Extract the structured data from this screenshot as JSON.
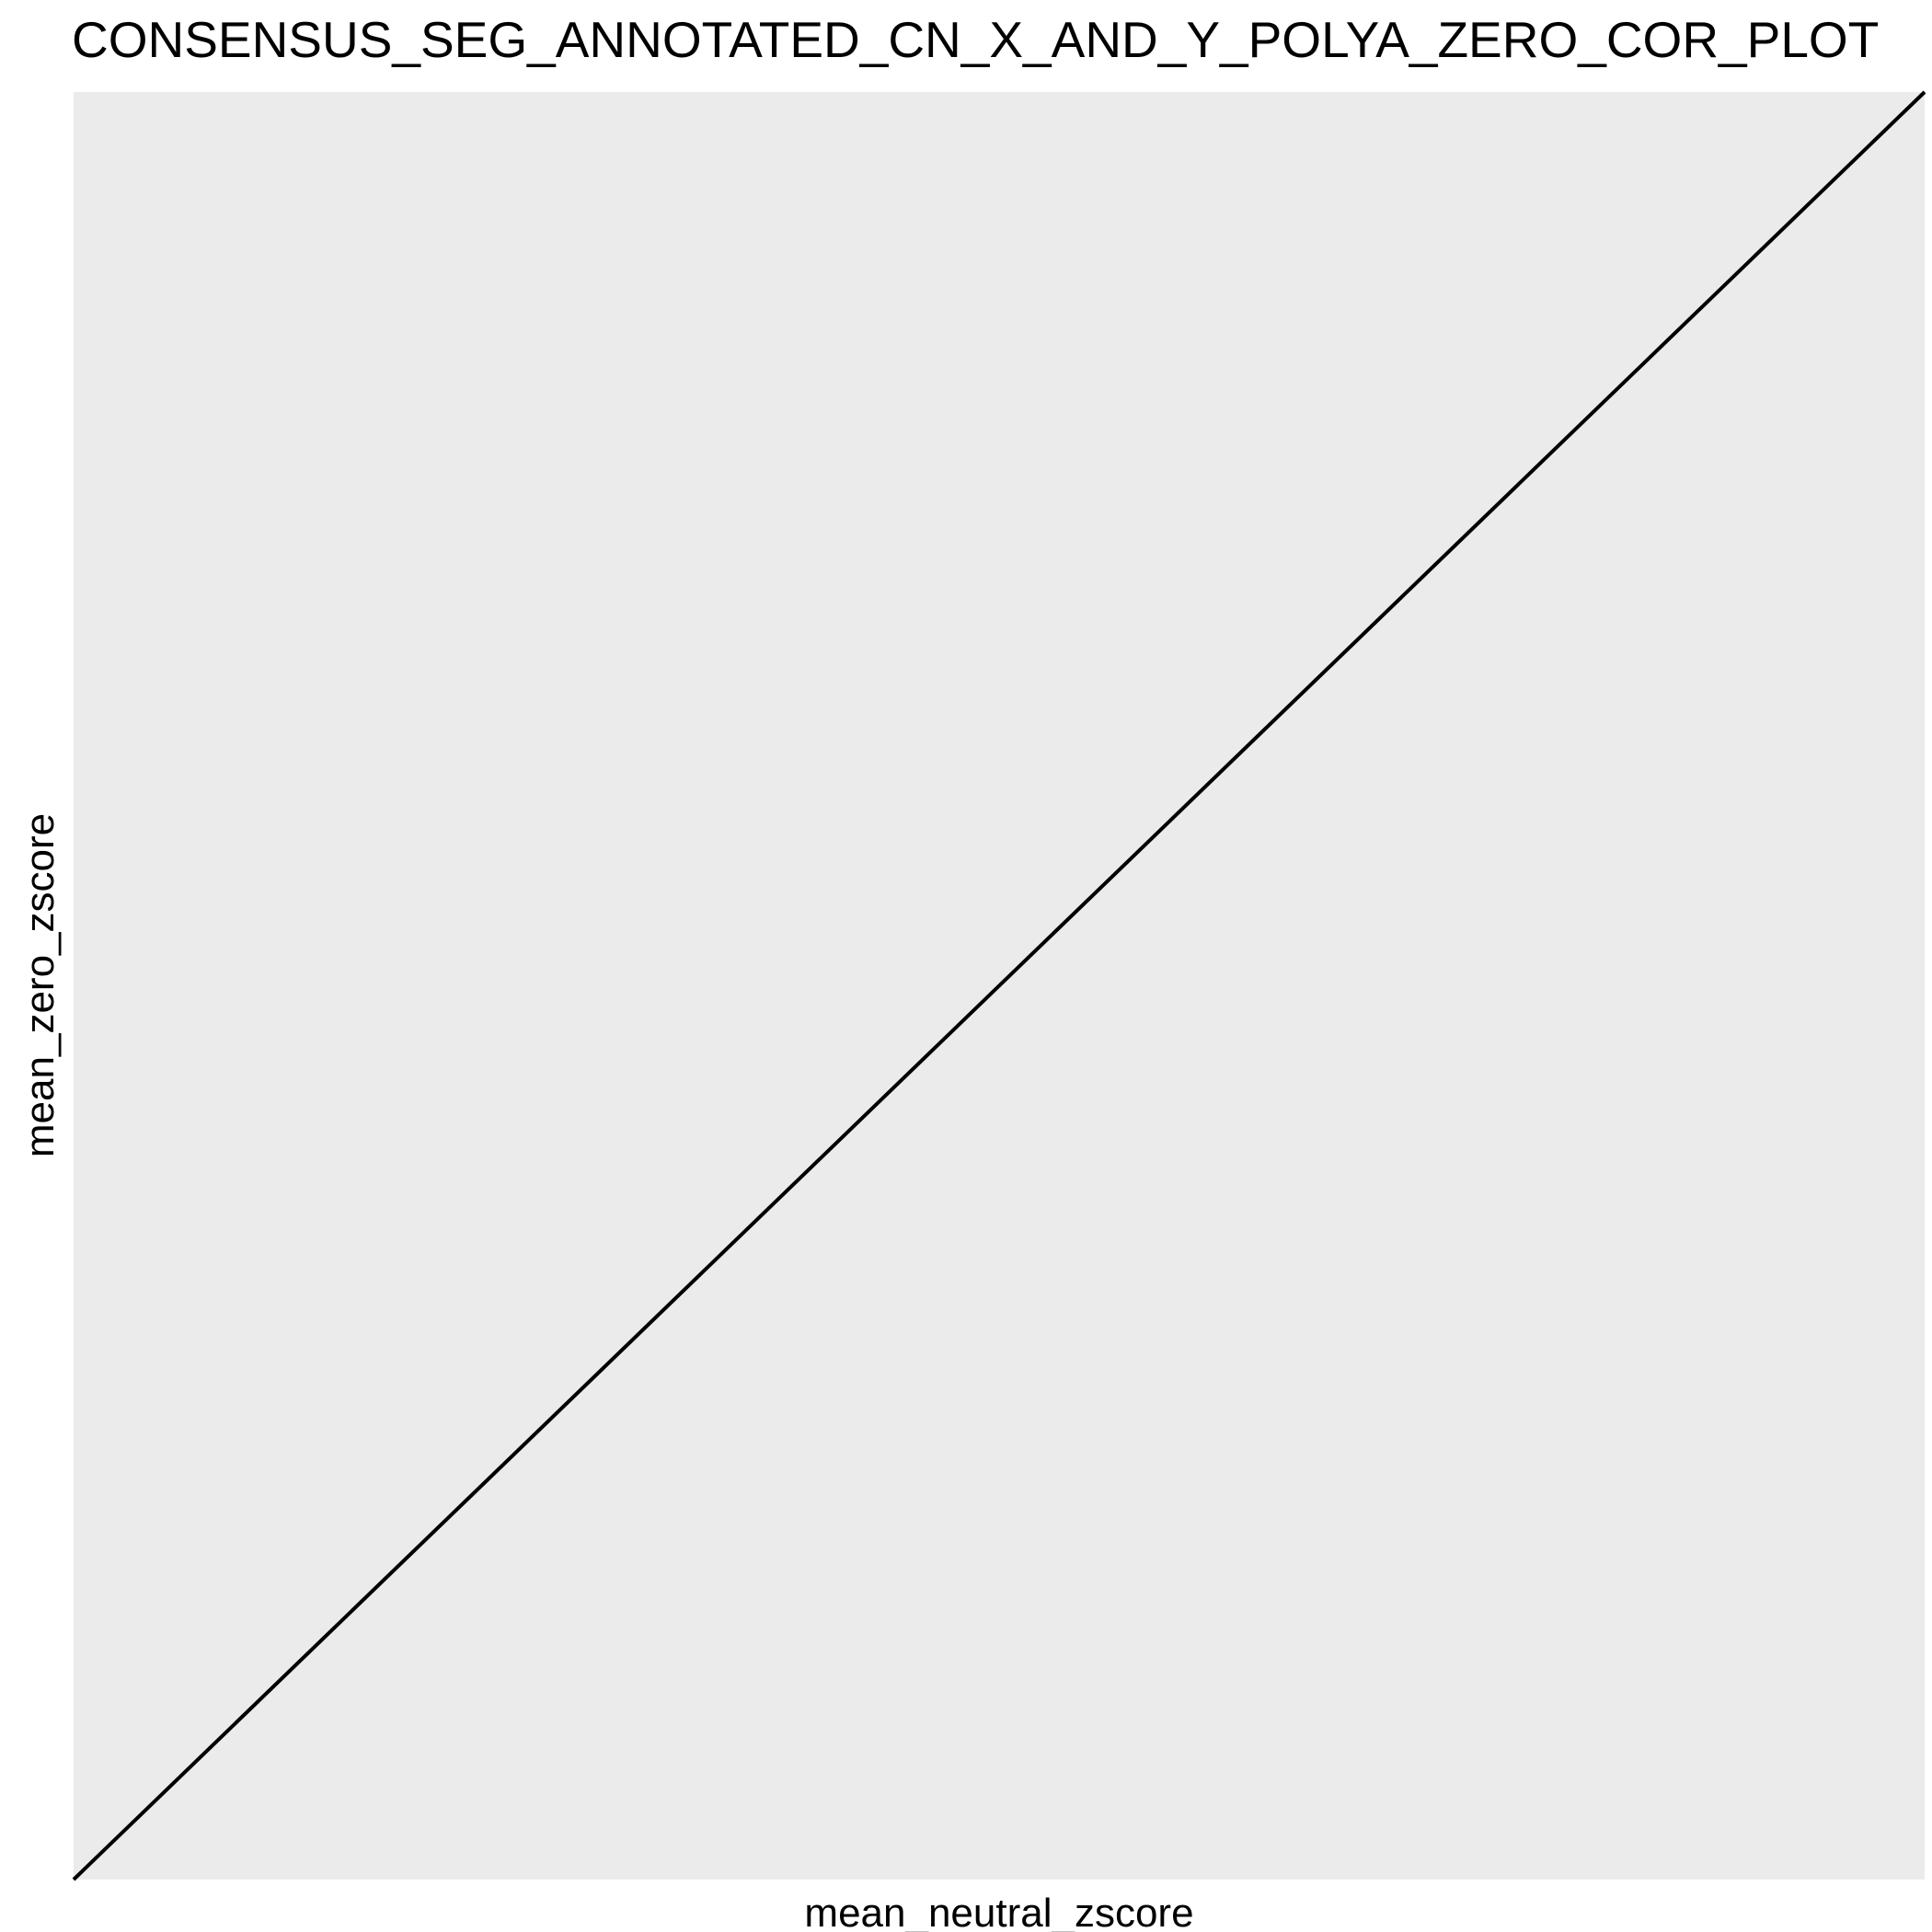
{
  "chart_data": {
    "type": "line",
    "title": "CONSENSUS_SEG_ANNOTATED_CN_X_AND_Y_POLYA_ZERO_COR_PLOT",
    "xlabel": "mean_neutral_zscore",
    "ylabel": "mean_zero_zscore",
    "xlim": [
      0,
      1
    ],
    "ylim": [
      0,
      1
    ],
    "grid": false,
    "legend": "none",
    "series": [
      {
        "x": [
          0,
          1
        ],
        "y": [
          0,
          1
        ],
        "color": "#000000"
      }
    ],
    "panel_background": "#EBEBEB"
  }
}
